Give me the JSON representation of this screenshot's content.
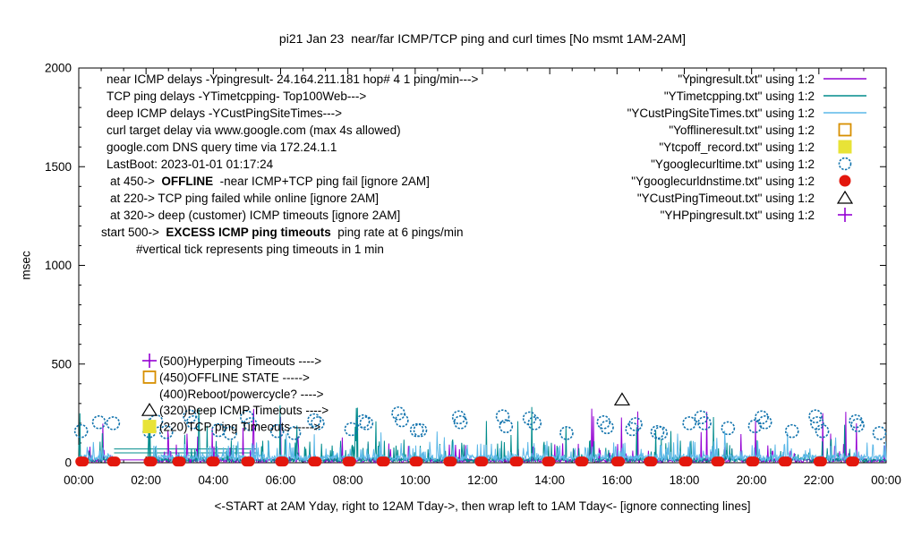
{
  "chart_data": {
    "type": "line",
    "title": "pi21 Jan 23  near/far ICMP/TCP ping and curl times [No msmt 1AM-2AM]",
    "ylabel": "msec",
    "xlabel": "<-START at 2AM Yday, right to 12AM Tday->, then wrap left to 1AM Tday<- [ignore connecting lines]",
    "axes": {
      "xlim_hours": [
        0,
        24
      ],
      "ylim": [
        0,
        2000
      ],
      "x_major_tick_hours": 2,
      "x_minor_tick_minutes": 40,
      "y_major_tick": 500,
      "y_minor_tick": 100,
      "grid": false
    },
    "x_ticks": [
      {
        "h": 0,
        "label": "00:00"
      },
      {
        "h": 2,
        "label": "02:00"
      },
      {
        "h": 4,
        "label": "04:00"
      },
      {
        "h": 6,
        "label": "06:00"
      },
      {
        "h": 8,
        "label": "08:00"
      },
      {
        "h": 10,
        "label": "10:00"
      },
      {
        "h": 12,
        "label": "12:00"
      },
      {
        "h": 14,
        "label": "14:00"
      },
      {
        "h": 16,
        "label": "16:00"
      },
      {
        "h": 18,
        "label": "18:00"
      },
      {
        "h": 20,
        "label": "20:00"
      },
      {
        "h": 22,
        "label": "22:00"
      },
      {
        "h": 24,
        "label": "00:00"
      }
    ],
    "y_ticks": [
      {
        "v": 0,
        "label": "0"
      },
      {
        "v": 500,
        "label": "500"
      },
      {
        "v": 1000,
        "label": "1000"
      },
      {
        "v": 1500,
        "label": "1500"
      },
      {
        "v": 2000,
        "label": "2000"
      }
    ],
    "legend_position": "top-right-inside",
    "legend": [
      {
        "label": "\"Ypingresult.txt\" using 1:2",
        "marker": "line",
        "color": "#9400d3"
      },
      {
        "label": "\"YTimetcpping.txt\" using 1:2",
        "marker": "line",
        "color": "#008c8c"
      },
      {
        "label": "\"YCustPingSiteTimes.txt\" using 1:2",
        "marker": "line",
        "color": "#5cb8e8"
      },
      {
        "label": "\"Yofflineresult.txt\" using 1:2",
        "marker": "open-square",
        "color": "#d78f00"
      },
      {
        "label": "\"Ytcpoff_record.txt\" using 1:2",
        "marker": "filled-square",
        "color": "#e8e337"
      },
      {
        "label": "\"Ygooglecurltime.txt\" using 1:2",
        "marker": "open-circle",
        "color": "#1173ad"
      },
      {
        "label": "\"Ygooglecurldnstime.txt\" using 1:2",
        "marker": "filled-circle",
        "color": "#e3170d"
      },
      {
        "label": "\"YCustPingTimeout.txt\" using 1:2",
        "marker": "open-triangle",
        "color": "#000000"
      },
      {
        "label": "\"YHPpingresult.txt\" using 1:2",
        "marker": "plus",
        "color": "#9400d3"
      }
    ],
    "info_lines": [
      {
        "x_offset": 2,
        "parts": [
          {
            "t": "near ICMP delays -Ypingresult- 24.164.211.181 hop# 4 1 ping/min--->",
            "b": false
          }
        ]
      },
      {
        "x_offset": 2,
        "parts": [
          {
            "t": "TCP ping delays -YTimetcpping- Top100Web--->",
            "b": false
          }
        ]
      },
      {
        "x_offset": 2,
        "parts": [
          {
            "t": "deep ICMP delays -YCustPingSiteTimes--->",
            "b": false
          }
        ]
      },
      {
        "x_offset": 2,
        "parts": [
          {
            "t": "curl target delay via www.google.com (max 4s allowed)",
            "b": false
          }
        ]
      },
      {
        "x_offset": 2,
        "parts": [
          {
            "t": "google.com DNS query time via 172.24.1.1",
            "b": false
          }
        ]
      },
      {
        "x_offset": 2,
        "parts": [
          {
            "t": "LastBoot: 2023-01-01 01:17:24",
            "b": false
          }
        ]
      },
      {
        "x_offset": 6,
        "parts": [
          {
            "t": "at 450->  ",
            "b": false
          },
          {
            "t": "OFFLINE",
            "b": true
          },
          {
            "t": "  -near ICMP+TCP ping fail [ignore 2AM]",
            "b": false
          }
        ]
      },
      {
        "x_offset": 6,
        "parts": [
          {
            "t": "at 220-> TCP ping failed while online [ignore 2AM]",
            "b": false
          }
        ]
      },
      {
        "x_offset": 6,
        "parts": [
          {
            "t": "at 320-> deep (customer) ICMP timeouts [ignore 2AM]",
            "b": false
          }
        ]
      },
      {
        "x_offset": -4,
        "parts": [
          {
            "t": "start 500->  ",
            "b": false
          },
          {
            "t": "EXCESS ICMP ping timeouts",
            "b": true
          },
          {
            "t": "  ping rate at 6 pings/min",
            "b": false
          }
        ]
      },
      {
        "x_offset": 35,
        "parts": [
          {
            "t": "#vertical tick represents ping timeouts in 1 min",
            "b": false
          }
        ]
      }
    ],
    "marker_annotations": [
      {
        "marker": "plus",
        "color": "#9400d3",
        "value": 500,
        "label": "(500)Hyperping Timeouts ---->"
      },
      {
        "marker": "open-square",
        "color": "#d78f00",
        "value": 450,
        "label": "(450)OFFLINE STATE ----->"
      },
      {
        "marker": null,
        "color": null,
        "value": 400,
        "label": "(400)Reboot/powercycle? ---->"
      },
      {
        "marker": "open-triangle",
        "color": "#000000",
        "value": 320,
        "label": "(320)Deep ICMP Timeouts ---->"
      },
      {
        "marker": "filled-square",
        "color": "#e8e337",
        "value": 220,
        "label": "(220)TCP ping Timeouts ----->"
      }
    ],
    "no_measurement_gap_minutes": [
      63,
      122
    ],
    "series": [
      {
        "name": "Ypingresult",
        "color": "#9400d3",
        "seed": 11,
        "base": [
          2,
          20
        ],
        "spikes": [
          {
            "p": 0.05,
            "range": [
              30,
              100
            ]
          },
          {
            "p": 0.016,
            "range": [
              120,
              300
            ]
          }
        ]
      },
      {
        "name": "YTimetcpping",
        "color": "#008c8c",
        "seed": 23,
        "base": [
          4,
          26
        ],
        "spikes": [
          {
            "p": 0.07,
            "range": [
              40,
              120
            ]
          },
          {
            "p": 0.02,
            "range": [
              130,
              300
            ]
          }
        ]
      },
      {
        "name": "YCustPingSiteTimes",
        "color": "#5cb8e8",
        "seed": 37,
        "base": [
          8,
          42
        ],
        "spikes": [
          {
            "p": 0.12,
            "range": [
              40,
              110
            ]
          },
          {
            "p": 0.006,
            "range": [
              120,
              170
            ]
          }
        ]
      }
    ],
    "connecting_lines": [
      {
        "color": "#008c8c",
        "points": [
          [
            1.05,
            70
          ],
          [
            5.3,
            70
          ]
        ]
      },
      {
        "color": "#008c8c",
        "points": [
          [
            1.05,
            50
          ],
          [
            5.35,
            50
          ]
        ]
      },
      {
        "color": "#9400d3",
        "points": [
          [
            1.1,
            14
          ],
          [
            5.9,
            14
          ]
        ]
      }
    ],
    "points": {
      "google_curl_circles": {
        "color": "#1173ad",
        "data": [
          [
            0.07,
            160
          ],
          [
            0.6,
            205
          ],
          [
            1.02,
            200
          ],
          [
            2.1,
            160
          ],
          [
            2.3,
            210
          ],
          [
            2.6,
            155
          ],
          [
            3.3,
            235
          ],
          [
            3.4,
            205
          ],
          [
            4.15,
            165
          ],
          [
            4.5,
            150
          ],
          [
            5.0,
            230
          ],
          [
            5.1,
            195
          ],
          [
            5.9,
            160
          ],
          [
            6.4,
            150
          ],
          [
            7.0,
            215
          ],
          [
            7.1,
            200
          ],
          [
            8.1,
            170
          ],
          [
            8.45,
            210
          ],
          [
            8.55,
            200
          ],
          [
            9.5,
            250
          ],
          [
            9.6,
            215
          ],
          [
            10.05,
            165
          ],
          [
            10.15,
            165
          ],
          [
            11.3,
            230
          ],
          [
            11.35,
            205
          ],
          [
            12.6,
            235
          ],
          [
            12.7,
            185
          ],
          [
            13.4,
            225
          ],
          [
            13.55,
            200
          ],
          [
            14.5,
            150
          ],
          [
            15.6,
            205
          ],
          [
            15.7,
            180
          ],
          [
            16.45,
            170
          ],
          [
            16.55,
            195
          ],
          [
            17.2,
            155
          ],
          [
            17.3,
            150
          ],
          [
            18.15,
            200
          ],
          [
            18.5,
            230
          ],
          [
            18.6,
            200
          ],
          [
            19.3,
            175
          ],
          [
            20.1,
            185
          ],
          [
            20.3,
            230
          ],
          [
            20.4,
            205
          ],
          [
            21.2,
            160
          ],
          [
            21.9,
            235
          ],
          [
            21.95,
            200
          ],
          [
            22.1,
            160
          ],
          [
            23.1,
            210
          ],
          [
            23.15,
            190
          ],
          [
            23.8,
            150
          ]
        ]
      },
      "google_dns_dots": {
        "color": "#e3170d",
        "value": 6,
        "times": [
          0.1,
          1.04,
          2.13,
          2.98,
          3.99,
          5.03,
          6.04,
          7.02,
          8.04,
          9.05,
          10.03,
          11.04,
          11.97,
          13.01,
          13.97,
          14.95,
          16.03,
          17.0,
          18.04,
          19.0,
          20.03,
          21.0,
          22.04,
          23.0
        ]
      },
      "cust_ping_timeout_triangles": {
        "color": "#000000",
        "data": [
          [
            16.15,
            320
          ]
        ]
      }
    }
  }
}
